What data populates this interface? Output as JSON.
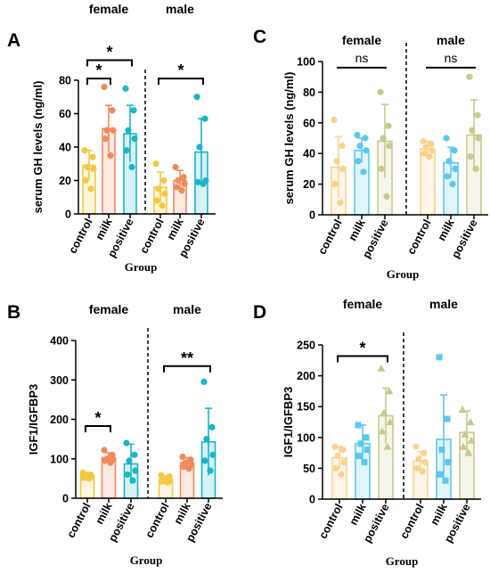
{
  "chart_data": [
    {
      "panel": "A",
      "type": "bar",
      "ylabel": "serum GH levels (ng/ml)",
      "xlabel": "Group",
      "ylim": [
        0,
        80
      ],
      "yticks": [
        0,
        20,
        40,
        60,
        80
      ],
      "groups": [
        "female",
        "male"
      ],
      "categories": [
        "control",
        "milk",
        "positive",
        "control",
        "milk",
        "positive"
      ],
      "colors": [
        "#F5C842",
        "#F08A5D",
        "#1BB5C8",
        "#F5C842",
        "#F08A5D",
        "#1BB5C8"
      ],
      "values": [
        29,
        51,
        48,
        16,
        20,
        37
      ],
      "error": [
        9,
        14,
        17,
        9,
        6,
        20
      ],
      "points": [
        [
          38,
          34,
          28,
          27,
          20,
          15
        ],
        [
          76,
          62,
          50,
          50,
          45,
          35
        ],
        [
          75,
          62,
          50,
          45,
          38,
          28
        ],
        [
          30,
          20,
          15,
          12,
          8,
          5
        ],
        [
          28,
          22,
          20,
          18,
          16,
          14
        ],
        [
          70,
          57,
          40,
          20,
          19,
          18
        ]
      ],
      "markers": [
        "circle",
        "circle",
        "circle",
        "circle",
        "circle",
        "circle"
      ],
      "annotations": [
        {
          "text": "*",
          "from": 0,
          "to": 2,
          "y": 92
        },
        {
          "text": "*",
          "from": 0,
          "to": 1,
          "y": 81
        },
        {
          "text": "*",
          "from": 3,
          "to": 5,
          "y": 81
        }
      ]
    },
    {
      "panel": "C",
      "type": "bar",
      "ylabel": "serum GH levels (ng/ml)",
      "xlabel": "Group",
      "ylim": [
        0,
        100
      ],
      "yticks": [
        0,
        20,
        40,
        60,
        80,
        100
      ],
      "groups": [
        "female",
        "male"
      ],
      "categories": [
        "control",
        "milk",
        "positive",
        "control",
        "milk",
        "positive"
      ],
      "colors": [
        "#FBD38D",
        "#5BC8EC",
        "#C9C98E",
        "#FBD38D",
        "#5BC8EC",
        "#C9C98E"
      ],
      "values": [
        31,
        42,
        48,
        43,
        34,
        52
      ],
      "error": [
        20,
        8,
        24,
        5,
        10,
        23
      ],
      "points": [
        [
          62,
          45,
          35,
          30,
          20,
          8
        ],
        [
          52,
          50,
          45,
          42,
          35,
          28
        ],
        [
          80,
          58,
          50,
          45,
          30,
          12
        ],
        [
          48,
          46,
          44,
          42,
          40,
          38
        ],
        [
          50,
          42,
          35,
          30,
          25,
          20
        ],
        [
          90,
          65,
          55,
          50,
          38,
          30
        ]
      ],
      "markers": [
        "circle",
        "circle",
        "circle",
        "circle",
        "circle",
        "circle"
      ],
      "annotations": [
        {
          "text": "ns",
          "from": 0,
          "to": 2,
          "y": 96
        },
        {
          "text": "ns",
          "from": 3,
          "to": 5,
          "y": 96
        }
      ]
    },
    {
      "panel": "B",
      "type": "bar",
      "ylabel": "IGF1/IGFBP3",
      "xlabel": "Group",
      "ylim": [
        0,
        400
      ],
      "yticks": [
        0,
        100,
        200,
        300,
        400
      ],
      "groups": [
        "female",
        "male"
      ],
      "categories": [
        "control",
        "milk",
        "positive",
        "control",
        "milk",
        "positive"
      ],
      "colors": [
        "#F5C842",
        "#F08A5D",
        "#1BB5C8",
        "#F5C842",
        "#F08A5D",
        "#1BB5C8"
      ],
      "values": [
        57,
        103,
        87,
        48,
        90,
        143
      ],
      "error": [
        8,
        12,
        50,
        8,
        13,
        85
      ],
      "points": [
        [
          65,
          60,
          55,
          55,
          52,
          50
        ],
        [
          122,
          110,
          100,
          98,
          95,
          90
        ],
        [
          140,
          110,
          95,
          70,
          60,
          45
        ],
        [
          58,
          55,
          50,
          45,
          42,
          40
        ],
        [
          105,
          98,
          90,
          85,
          80,
          75
        ],
        [
          295,
          180,
          150,
          110,
          95,
          70
        ]
      ],
      "markers": [
        "circle",
        "circle",
        "circle",
        "circle",
        "circle",
        "circle"
      ],
      "annotations": [
        {
          "text": "*",
          "from": 0,
          "to": 1,
          "y": 183
        },
        {
          "text": "**",
          "from": 3,
          "to": 5,
          "y": 335
        }
      ]
    },
    {
      "panel": "D",
      "type": "bar",
      "ylabel": "IGF1/IGFBP3",
      "xlabel": "Group",
      "ylim": [
        0,
        250
      ],
      "yticks": [
        0,
        50,
        100,
        150,
        200,
        250
      ],
      "groups": [
        "female",
        "male"
      ],
      "categories": [
        "control",
        "milk",
        "positive",
        "control",
        "milk",
        "positive"
      ],
      "colors": [
        "#FBD38D",
        "#5BC8EC",
        "#C9C98E",
        "#FBD38D",
        "#5BC8EC",
        "#C9C98E"
      ],
      "values": [
        67,
        90,
        135,
        62,
        97,
        108
      ],
      "error": [
        18,
        30,
        45,
        15,
        72,
        35
      ],
      "points": [
        [
          85,
          80,
          70,
          60,
          50,
          40
        ],
        [
          120,
          100,
          90,
          80,
          70,
          60
        ],
        [
          212,
          175,
          140,
          125,
          110,
          85
        ],
        [
          85,
          75,
          65,
          60,
          50,
          45
        ],
        [
          230,
          130,
          80,
          60,
          40,
          30
        ],
        [
          145,
          125,
          105,
          95,
          85,
          75
        ]
      ],
      "markers": [
        "circle",
        "square",
        "triangle",
        "circle",
        "square",
        "triangle"
      ],
      "annotations": [
        {
          "text": "*",
          "from": 0,
          "to": 2,
          "y": 232
        }
      ]
    }
  ]
}
